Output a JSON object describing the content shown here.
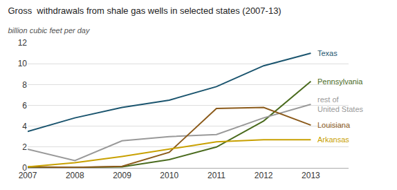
{
  "chart_data": {
    "type": "line",
    "title": "Gross  withdrawals from shale gas wells in selected states (2007-13)",
    "subtitle": "billion cubic feet per day",
    "x": [
      2007,
      2008,
      2009,
      2010,
      2011,
      2012,
      2013
    ],
    "series": [
      {
        "name": "Texas",
        "color": "#1a546e",
        "values": [
          3.5,
          4.8,
          5.8,
          6.5,
          7.8,
          9.8,
          11.0
        ]
      },
      {
        "name": "Pennsylvania",
        "color": "#4a6b1e",
        "values": [
          0.05,
          0.05,
          0.1,
          0.8,
          2.0,
          4.5,
          8.3
        ]
      },
      {
        "name": "rest of\nUnited States",
        "color": "#999999",
        "values": [
          1.8,
          0.7,
          2.6,
          3.0,
          3.2,
          4.8,
          6.1
        ]
      },
      {
        "name": "Louisiana",
        "color": "#8b5a1a",
        "values": [
          0.1,
          0.05,
          0.15,
          1.5,
          5.7,
          5.8,
          4.1
        ]
      },
      {
        "name": "Arkansas",
        "color": "#c8a000",
        "values": [
          0.1,
          0.5,
          1.1,
          1.8,
          2.5,
          2.7,
          2.7
        ]
      }
    ],
    "xlim": [
      2007,
      2013.8
    ],
    "xticks": [
      2007,
      2008,
      2009,
      2010,
      2011,
      2012,
      2013
    ],
    "ylim": [
      0,
      12
    ],
    "yticks": [
      0,
      2,
      4,
      6,
      8,
      10,
      12
    ],
    "grid": true
  }
}
